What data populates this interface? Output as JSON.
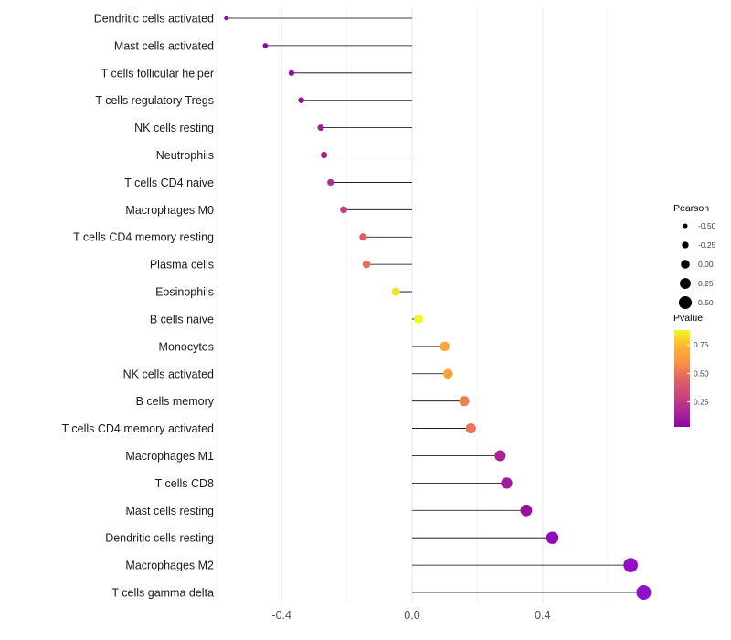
{
  "figure": {
    "background": "#FFFFFF"
  },
  "chart_data": {
    "type": "lollipop",
    "orientation": "horizontal",
    "title": "",
    "xlabel": "",
    "ylabel": "",
    "x_axis": {
      "range": [
        -0.66,
        0.78
      ],
      "ticks": [
        -0.4,
        0.0,
        0.4
      ],
      "tick_labels": [
        "-0.4",
        "0.0",
        "0.4"
      ],
      "minor_ticks": [
        -0.6,
        -0.2,
        0.2,
        0.6
      ]
    },
    "points": [
      {
        "label": "Dendritic cells activated",
        "value": -0.57,
        "color": "#910DA3"
      },
      {
        "label": "Mast cells activated",
        "value": -0.45,
        "color": "#8A0AA5"
      },
      {
        "label": "T cells follicular helper",
        "value": -0.37,
        "color": "#8D0CA4"
      },
      {
        "label": "T cells regulatory  Tregs",
        "value": -0.34,
        "color": "#9611A1"
      },
      {
        "label": "NK cells resting",
        "value": -0.28,
        "color": "#A51F98"
      },
      {
        "label": "Neutrophils",
        "value": -0.27,
        "color": "#AA2394"
      },
      {
        "label": "T cells CD4 naive",
        "value": -0.25,
        "color": "#B42E8D"
      },
      {
        "label": "Macrophages M0",
        "value": -0.21,
        "color": "#C43E7F"
      },
      {
        "label": "T cells CD4 memory resting",
        "value": -0.15,
        "color": "#DD6065"
      },
      {
        "label": "Plasma cells",
        "value": -0.14,
        "color": "#E76E5B"
      },
      {
        "label": "Eosinophils",
        "value": -0.05,
        "color": "#F2E128"
      },
      {
        "label": "B cells naive",
        "value": 0.02,
        "color": "#F0F921"
      },
      {
        "label": "Monocytes",
        "value": 0.1,
        "color": "#FCA636"
      },
      {
        "label": "NK cells activated",
        "value": 0.11,
        "color": "#FAA23B"
      },
      {
        "label": "B cells memory",
        "value": 0.16,
        "color": "#EF7E50"
      },
      {
        "label": "T cells CD4 memory activated",
        "value": 0.18,
        "color": "#E8745A"
      },
      {
        "label": "Macrophages M1",
        "value": 0.27,
        "color": "#A82296"
      },
      {
        "label": "T cells CD8",
        "value": 0.29,
        "color": "#9F1C9C"
      },
      {
        "label": "Mast cells resting",
        "value": 0.35,
        "color": "#9611A1"
      },
      {
        "label": "Dendritic cells resting",
        "value": 0.43,
        "color": "#8F0CB8"
      },
      {
        "label": "Macrophages M2",
        "value": 0.67,
        "color": "#9110CC"
      },
      {
        "label": "T cells gamma delta",
        "value": 0.71,
        "color": "#9110CC"
      }
    ],
    "size_legend": {
      "title": "Pearson",
      "entries": [
        {
          "label": "-0.50",
          "value": -0.5
        },
        {
          "label": "-0.25",
          "value": -0.25
        },
        {
          "label": "0.00",
          "value": 0.0
        },
        {
          "label": "0.25",
          "value": 0.25
        },
        {
          "label": "0.50",
          "value": 0.5
        }
      ]
    },
    "color_legend": {
      "title": "Pvalue",
      "labels": [
        "0.75",
        "0.50",
        "0.25"
      ],
      "label_values": [
        0.75,
        0.5,
        0.25
      ],
      "domain_top_to_bottom": [
        0.88,
        0.03
      ],
      "gradient_stops": [
        "#F0F921",
        "#FDB32F",
        "#F89441",
        "#E16462",
        "#CC4778",
        "#AD2793",
        "#8B0AA5"
      ]
    },
    "styles": {
      "stick_color": "#000000",
      "dot_legend_color": "#000000",
      "grid_major_color": "#EBEBEB",
      "grid_minor_color": "#F5F5F5",
      "tick_label_color": "#4D4D4D",
      "category_label_color": "#1A1A1A",
      "legend_title_color": "#000000",
      "legend_label_color": "#404040"
    }
  }
}
